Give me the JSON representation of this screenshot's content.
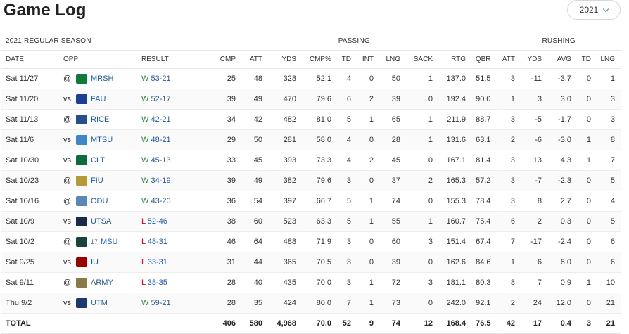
{
  "header": {
    "title": "Game Log",
    "season_select": "2021"
  },
  "table": {
    "season_label": "2021 REGULAR SEASON",
    "group_passing": "PASSING",
    "group_rushing": "RUSHING",
    "columns": [
      "DATE",
      "OPP",
      "RESULT",
      "CMP",
      "ATT",
      "YDS",
      "CMP%",
      "TD",
      "INT",
      "LNG",
      "SACK",
      "RTG",
      "QBR",
      "ATT",
      "YDS",
      "AVG",
      "TD",
      "LNG"
    ],
    "rows": [
      {
        "date": "Sat 11/27",
        "ha": "@",
        "opp": "MRSH",
        "rank": "",
        "res": "W",
        "score": "53-21",
        "p": [
          "25",
          "48",
          "328",
          "52.1",
          "4",
          "0",
          "50",
          "1",
          "137.0",
          "51.5"
        ],
        "r": [
          "3",
          "-11",
          "-3.7",
          "0",
          "1"
        ],
        "logo_color": "#0f7a3a",
        "logo_icon": "marshall-logo-icon"
      },
      {
        "date": "Sat 11/20",
        "ha": "vs",
        "opp": "FAU",
        "rank": "",
        "res": "W",
        "score": "52-17",
        "p": [
          "39",
          "49",
          "470",
          "79.6",
          "6",
          "2",
          "39",
          "0",
          "192.4",
          "90.0"
        ],
        "r": [
          "1",
          "3",
          "3.0",
          "0",
          "3"
        ],
        "logo_color": "#1c3f94",
        "logo_icon": "fau-logo-icon"
      },
      {
        "date": "Sat 11/13",
        "ha": "@",
        "opp": "RICE",
        "rank": "",
        "res": "W",
        "score": "42-21",
        "p": [
          "34",
          "42",
          "482",
          "81.0",
          "5",
          "1",
          "65",
          "1",
          "211.9",
          "88.7"
        ],
        "r": [
          "3",
          "-5",
          "-1.7",
          "0",
          "3"
        ],
        "logo_color": "#2a4e8c",
        "logo_icon": "rice-logo-icon"
      },
      {
        "date": "Sat 11/6",
        "ha": "vs",
        "opp": "MTSU",
        "rank": "",
        "res": "W",
        "score": "48-21",
        "p": [
          "29",
          "50",
          "281",
          "58.0",
          "4",
          "0",
          "28",
          "1",
          "131.6",
          "63.1"
        ],
        "r": [
          "2",
          "-6",
          "-3.0",
          "1",
          "8"
        ],
        "logo_color": "#3f86c8",
        "logo_icon": "mtsu-logo-icon"
      },
      {
        "date": "Sat 10/30",
        "ha": "vs",
        "opp": "CLT",
        "rank": "",
        "res": "W",
        "score": "45-13",
        "p": [
          "33",
          "45",
          "393",
          "73.3",
          "4",
          "2",
          "45",
          "0",
          "167.1",
          "81.4"
        ],
        "r": [
          "3",
          "13",
          "4.3",
          "1",
          "7"
        ],
        "logo_color": "#0b6b3a",
        "logo_icon": "charlotte-logo-icon"
      },
      {
        "date": "Sat 10/23",
        "ha": "@",
        "opp": "FIU",
        "rank": "",
        "res": "W",
        "score": "34-19",
        "p": [
          "39",
          "49",
          "382",
          "79.6",
          "3",
          "0",
          "37",
          "2",
          "165.3",
          "57.2"
        ],
        "r": [
          "3",
          "-7",
          "-2.3",
          "0",
          "5"
        ],
        "logo_color": "#b69a3a",
        "logo_icon": "fiu-logo-icon"
      },
      {
        "date": "Sat 10/16",
        "ha": "@",
        "opp": "ODU",
        "rank": "",
        "res": "W",
        "score": "43-20",
        "p": [
          "36",
          "54",
          "397",
          "66.7",
          "5",
          "1",
          "74",
          "0",
          "155.3",
          "78.4"
        ],
        "r": [
          "3",
          "8",
          "2.7",
          "0",
          "4"
        ],
        "logo_color": "#5b86b8",
        "logo_icon": "odu-logo-icon"
      },
      {
        "date": "Sat 10/9",
        "ha": "vs",
        "opp": "UTSA",
        "rank": "",
        "res": "L",
        "score": "52-46",
        "p": [
          "38",
          "60",
          "523",
          "63.3",
          "5",
          "1",
          "55",
          "1",
          "160.7",
          "75.4"
        ],
        "r": [
          "6",
          "2",
          "0.3",
          "0",
          "5"
        ],
        "logo_color": "#1a2a4a",
        "logo_icon": "utsa-logo-icon"
      },
      {
        "date": "Sat 10/2",
        "ha": "@",
        "opp": "MSU",
        "rank": "17",
        "res": "L",
        "score": "48-31",
        "p": [
          "46",
          "64",
          "488",
          "71.9",
          "3",
          "0",
          "60",
          "3",
          "151.4",
          "67.4"
        ],
        "r": [
          "7",
          "-17",
          "-2.4",
          "0",
          "6"
        ],
        "logo_color": "#18453b",
        "logo_icon": "michigan-state-logo-icon"
      },
      {
        "date": "Sat 9/25",
        "ha": "vs",
        "opp": "IU",
        "rank": "",
        "res": "L",
        "score": "33-31",
        "p": [
          "31",
          "44",
          "365",
          "70.5",
          "3",
          "0",
          "39",
          "0",
          "162.6",
          "84.6"
        ],
        "r": [
          "1",
          "6",
          "6.0",
          "0",
          "6"
        ],
        "logo_color": "#990000",
        "logo_icon": "indiana-logo-icon"
      },
      {
        "date": "Sat 9/11",
        "ha": "@",
        "opp": "ARMY",
        "rank": "",
        "res": "L",
        "score": "38-35",
        "p": [
          "28",
          "40",
          "435",
          "70.0",
          "3",
          "1",
          "72",
          "3",
          "181.1",
          "80.3"
        ],
        "r": [
          "8",
          "7",
          "0.9",
          "1",
          "10"
        ],
        "logo_color": "#8a7a4a",
        "logo_icon": "army-logo-icon"
      },
      {
        "date": "Thu 9/2",
        "ha": "vs",
        "opp": "UTM",
        "rank": "",
        "res": "W",
        "score": "59-21",
        "p": [
          "28",
          "35",
          "424",
          "80.0",
          "7",
          "1",
          "73",
          "0",
          "242.0",
          "92.1"
        ],
        "r": [
          "2",
          "24",
          "12.0",
          "0",
          "21"
        ],
        "logo_color": "#1b3a6b",
        "logo_icon": "ut-martin-logo-icon"
      }
    ],
    "total": {
      "label": "TOTAL",
      "p": [
        "406",
        "580",
        "4,968",
        "70.0",
        "52",
        "9",
        "74",
        "12",
        "168.4",
        "76.5"
      ],
      "r": [
        "42",
        "17",
        "0.4",
        "3",
        "21"
      ]
    }
  }
}
